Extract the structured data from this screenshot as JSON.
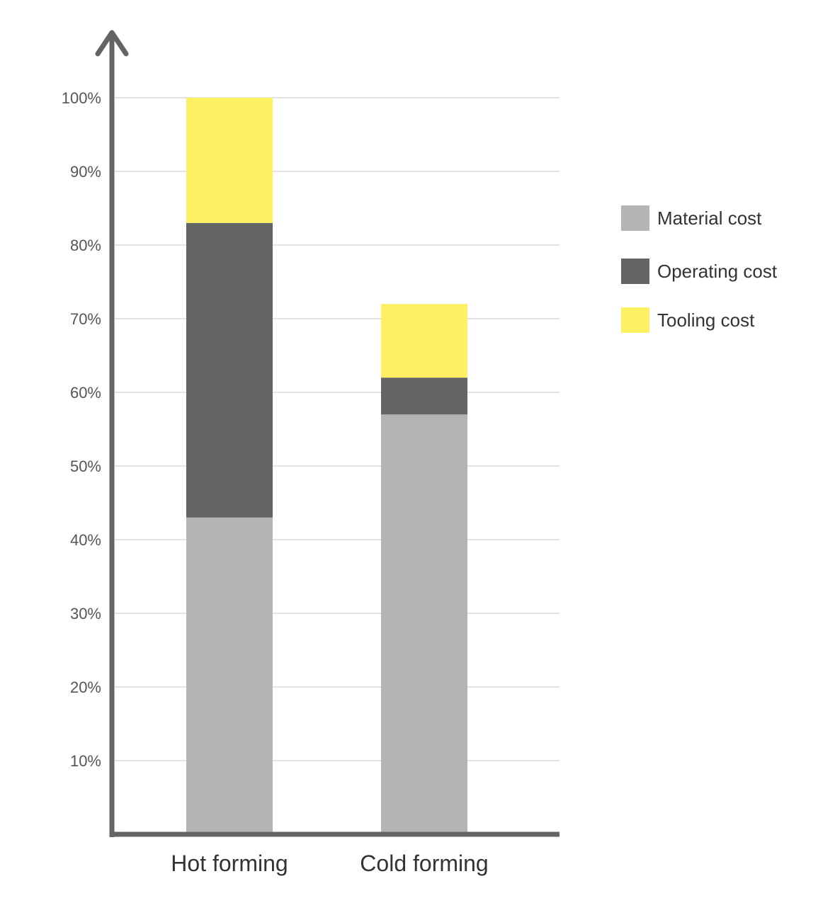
{
  "chart_data": {
    "type": "bar",
    "stacked": true,
    "categories": [
      "Hot forming",
      "Cold forming"
    ],
    "series": [
      {
        "name": "Material cost",
        "values": [
          43,
          57
        ],
        "color": "#b4b4b7"
      },
      {
        "name": "Operating cost",
        "values": [
          40,
          5
        ],
        "color": "#636466"
      },
      {
        "name": "Tooling cost",
        "values": [
          17,
          10
        ],
        "color": "#fef063"
      }
    ],
    "ylim": [
      0,
      100
    ],
    "yticks": [
      10,
      20,
      30,
      40,
      50,
      60,
      70,
      80,
      90,
      100
    ],
    "ytick_labels": [
      "10%",
      "20%",
      "30%",
      "40%",
      "50%",
      "60%",
      "70%",
      "80%",
      "90%",
      "100%"
    ],
    "grid": true,
    "legend_position": "right",
    "title": "",
    "xlabel": "",
    "ylabel": "",
    "colors": {
      "axis": "#636466",
      "grid": "#e3e3e3",
      "text": "#333333"
    }
  }
}
